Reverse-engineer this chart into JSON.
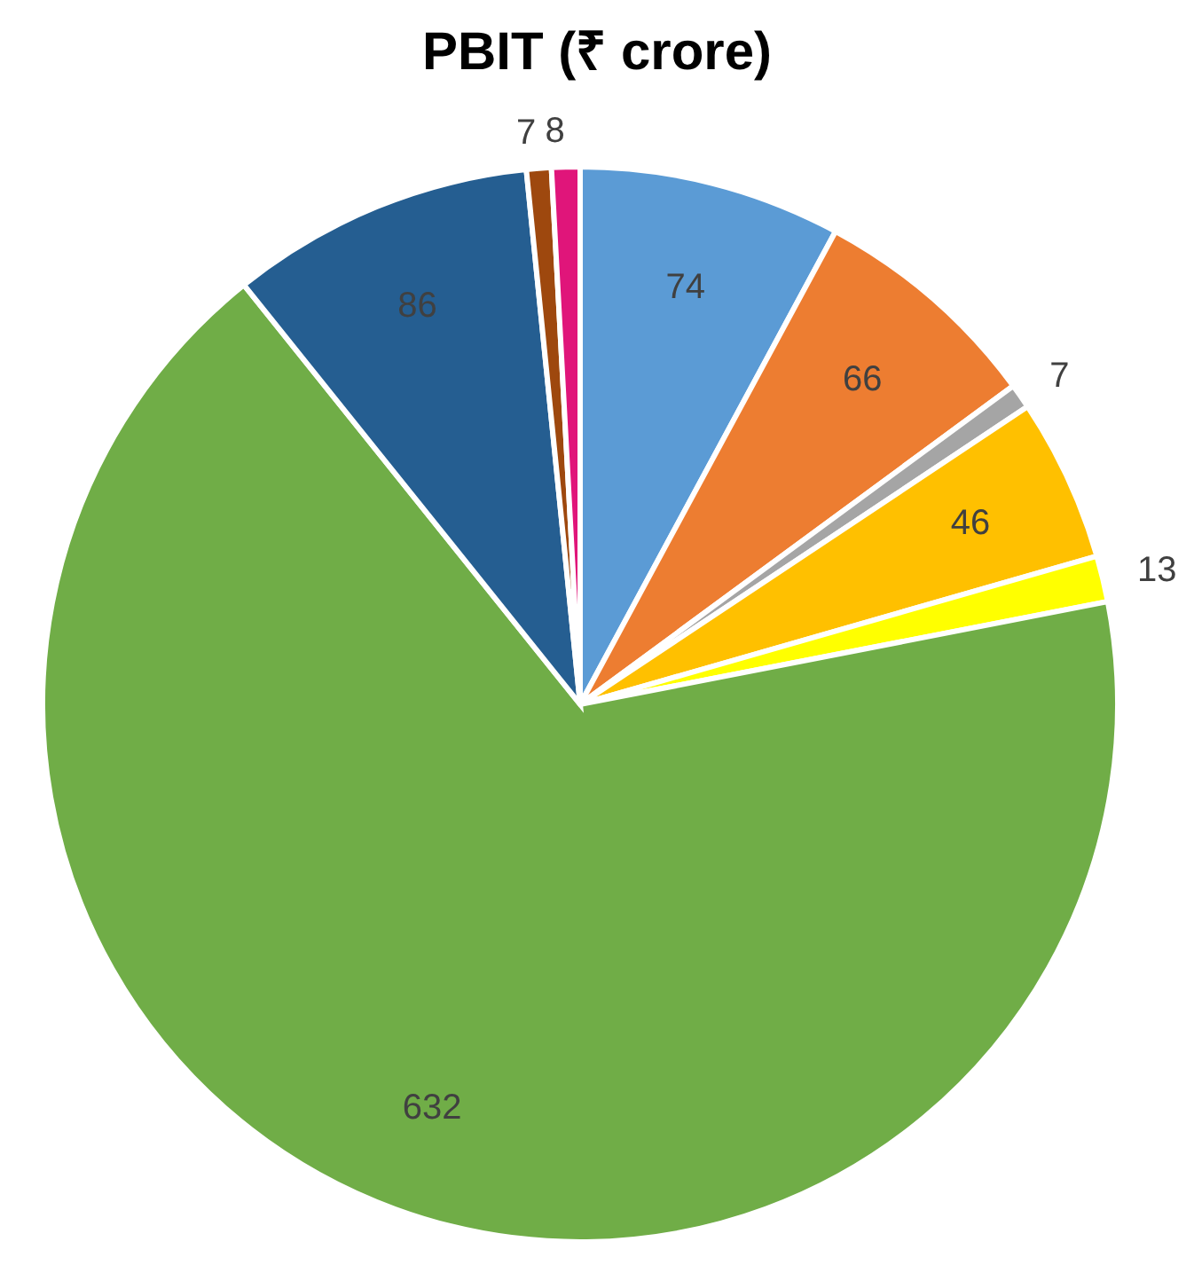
{
  "chart_data": {
    "type": "pie",
    "title": "PBIT (₹ crore)",
    "categories": [
      null,
      null,
      null,
      null,
      null,
      null,
      null,
      null,
      null
    ],
    "values": [
      74,
      66,
      7,
      46,
      13,
      632,
      86,
      7,
      8
    ],
    "colors": [
      "#5b9bd5",
      "#ed7d31",
      "#a5a5a5",
      "#ffc000",
      "#ffff00",
      "#70ad47",
      "#255e91",
      "#9e480e",
      "#e0157a"
    ],
    "data_labels": true
  }
}
